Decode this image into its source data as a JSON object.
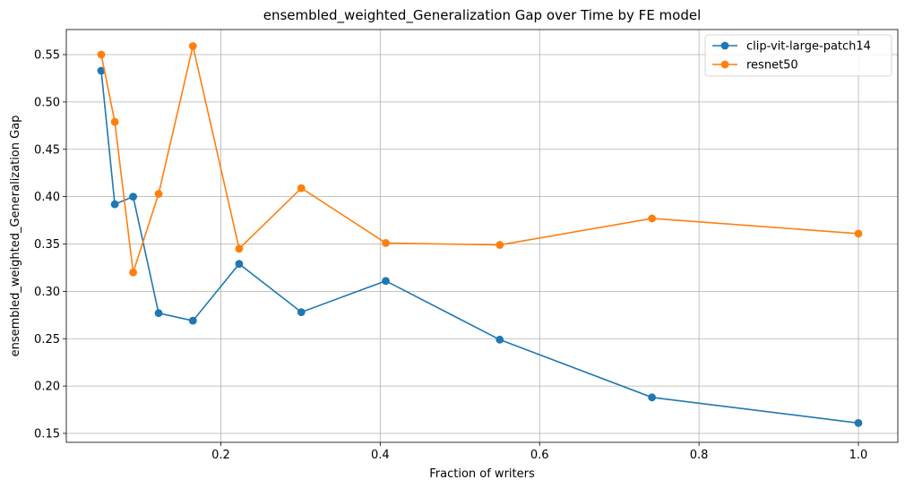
{
  "chart_data": {
    "type": "line",
    "title": "ensembled_weighted_Generalization Gap over Time by FE model",
    "xlabel": "Fraction of writers",
    "ylabel": "ensembled_weighted_Generalization Gap",
    "xlim": [
      0.0,
      1.0
    ],
    "ylim": [
      0.14,
      0.58
    ],
    "xticks": [
      0.2,
      0.4,
      0.6,
      0.8,
      1.0
    ],
    "xtick_labels": [
      "0.2",
      "0.4",
      "0.6",
      "0.8",
      "1.0"
    ],
    "yticks": [
      0.15,
      0.2,
      0.25,
      0.3,
      0.35,
      0.4,
      0.45,
      0.5,
      0.55
    ],
    "ytick_labels": [
      "0.15",
      "0.20",
      "0.25",
      "0.30",
      "0.35",
      "0.40",
      "0.45",
      "0.50",
      "0.55"
    ],
    "grid": true,
    "legend_position": "top-right",
    "x": [
      0.05,
      0.067,
      0.09,
      0.122,
      0.165,
      0.223,
      0.301,
      0.407,
      0.55,
      0.741,
      1.0
    ],
    "series": [
      {
        "name": "clip-vit-large-patch14",
        "color": "#1f77b4",
        "values": [
          0.533,
          0.392,
          0.4,
          0.277,
          0.269,
          0.329,
          0.278,
          0.311,
          0.249,
          0.188,
          0.161
        ]
      },
      {
        "name": "resnet50",
        "color": "#ff7f0e",
        "values": [
          0.55,
          0.479,
          0.32,
          0.403,
          0.559,
          0.345,
          0.409,
          0.351,
          0.349,
          0.377,
          0.361
        ]
      }
    ]
  }
}
